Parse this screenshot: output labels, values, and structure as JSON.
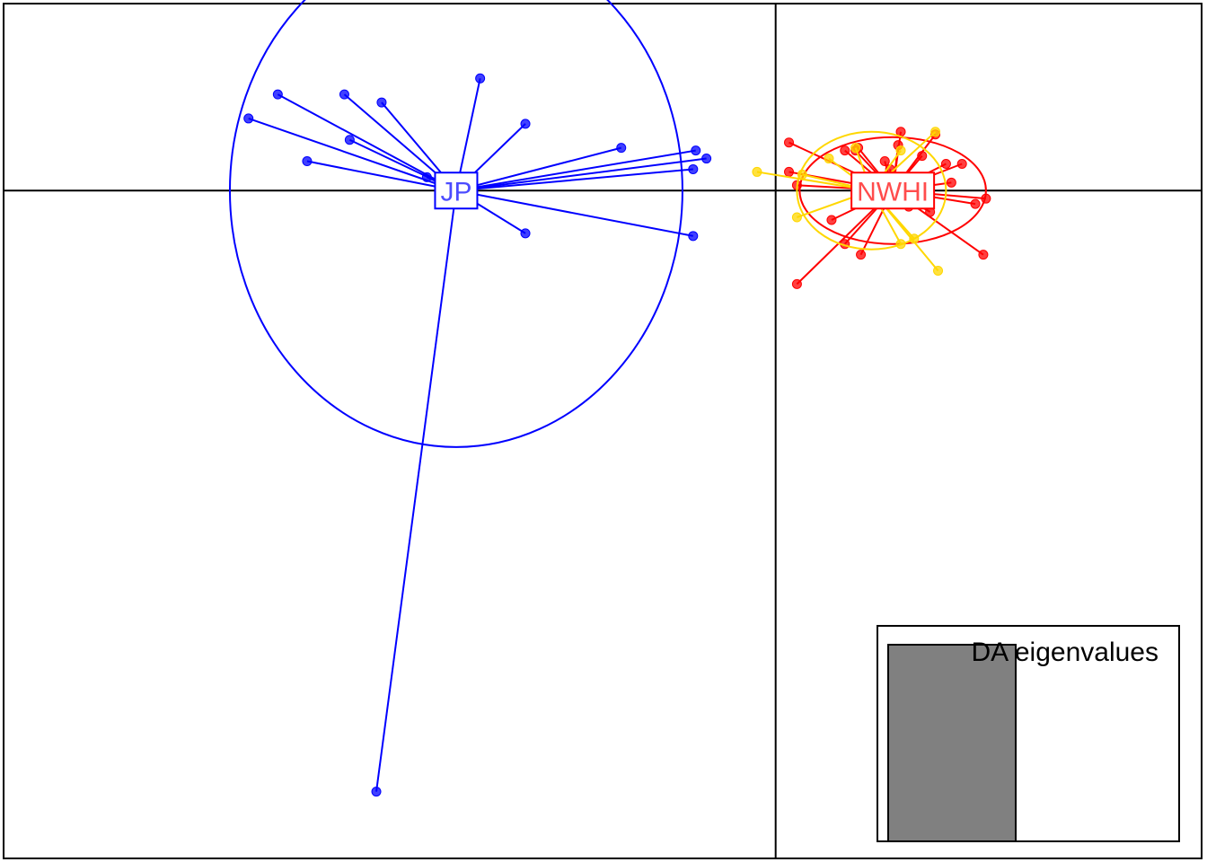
{
  "chart_data": {
    "type": "scatter",
    "title": "",
    "xlabel": "",
    "ylabel": "",
    "grid": false,
    "axes_lines": "cross-through-origin",
    "xlim": [
      -2.9,
      1.6
    ],
    "ylim": [
      -2.5,
      0.7
    ],
    "groups": [
      {
        "id": "JP",
        "label": "JP",
        "color": "#0000ff",
        "centroid": [
          -1.2,
          0.0
        ],
        "ellipse": {
          "rx": 0.85,
          "ry": 0.96
        },
        "points": [
          [
            -1.5,
            -2.25
          ],
          [
            -0.3,
            0.15
          ],
          [
            -1.6,
            0.19
          ],
          [
            -0.31,
            -0.17
          ],
          [
            -1.48,
            0.33
          ],
          [
            -0.31,
            0.08
          ],
          [
            -1.87,
            0.36
          ],
          [
            -1.11,
            0.42
          ],
          [
            -1.62,
            0.36
          ],
          [
            -0.26,
            0.12
          ],
          [
            -0.94,
            0.25
          ],
          [
            -0.94,
            -0.16
          ],
          [
            -1.98,
            0.27
          ],
          [
            -0.58,
            0.16
          ],
          [
            -1.76,
            0.11
          ],
          [
            -1.31,
            0.05
          ]
        ]
      },
      {
        "id": "NWHI",
        "label": "NWHI",
        "color": "#ff0000",
        "centroid": [
          0.44,
          0.0
        ],
        "ellipse": {
          "rx": 0.35,
          "ry": 0.2
        },
        "points": [
          [
            0.05,
            0.18
          ],
          [
            0.47,
            0.04
          ],
          [
            0.7,
            0.1
          ],
          [
            0.08,
            -0.35
          ],
          [
            0.66,
            0.03
          ],
          [
            0.43,
            0.08
          ],
          [
            0.6,
            0.21
          ],
          [
            0.47,
            0.22
          ],
          [
            0.31,
            0.16
          ],
          [
            0.32,
            -0.24
          ],
          [
            0.5,
            -0.06
          ],
          [
            0.78,
            -0.24
          ],
          [
            0.64,
            0.1
          ],
          [
            0.05,
            0.07
          ],
          [
            0.41,
            0.11
          ],
          [
            0.26,
            0.15
          ],
          [
            0.3,
            0.15
          ],
          [
            0.26,
            -0.2
          ],
          [
            0.75,
            -0.05
          ],
          [
            0.08,
            0.02
          ],
          [
            0.58,
            -0.08
          ],
          [
            0.79,
            -0.03
          ],
          [
            0.21,
            -0.11
          ],
          [
            0.55,
            0.13
          ],
          [
            0.46,
            0.17
          ]
        ]
      },
      {
        "id": "yellow",
        "label": "",
        "color": "#ffd700",
        "centroid": [
          0.36,
          0.0
        ],
        "ellipse": {
          "rx": 0.28,
          "ry": 0.22
        },
        "points": [
          [
            -0.07,
            0.07
          ],
          [
            0.6,
            0.22
          ],
          [
            0.47,
            0.15
          ],
          [
            0.61,
            -0.3
          ],
          [
            0.52,
            -0.18
          ],
          [
            0.47,
            -0.2
          ],
          [
            0.08,
            -0.1
          ],
          [
            0.2,
            0.12
          ],
          [
            0.54,
            -0.02
          ],
          [
            0.1,
            0.06
          ],
          [
            0.3,
            0.16
          ],
          [
            0.42,
            -0.05
          ]
        ]
      }
    ],
    "inset": {
      "title": "DA eigenvalues",
      "type": "bar",
      "values": [
        1
      ],
      "bar_color": "#808080"
    }
  }
}
